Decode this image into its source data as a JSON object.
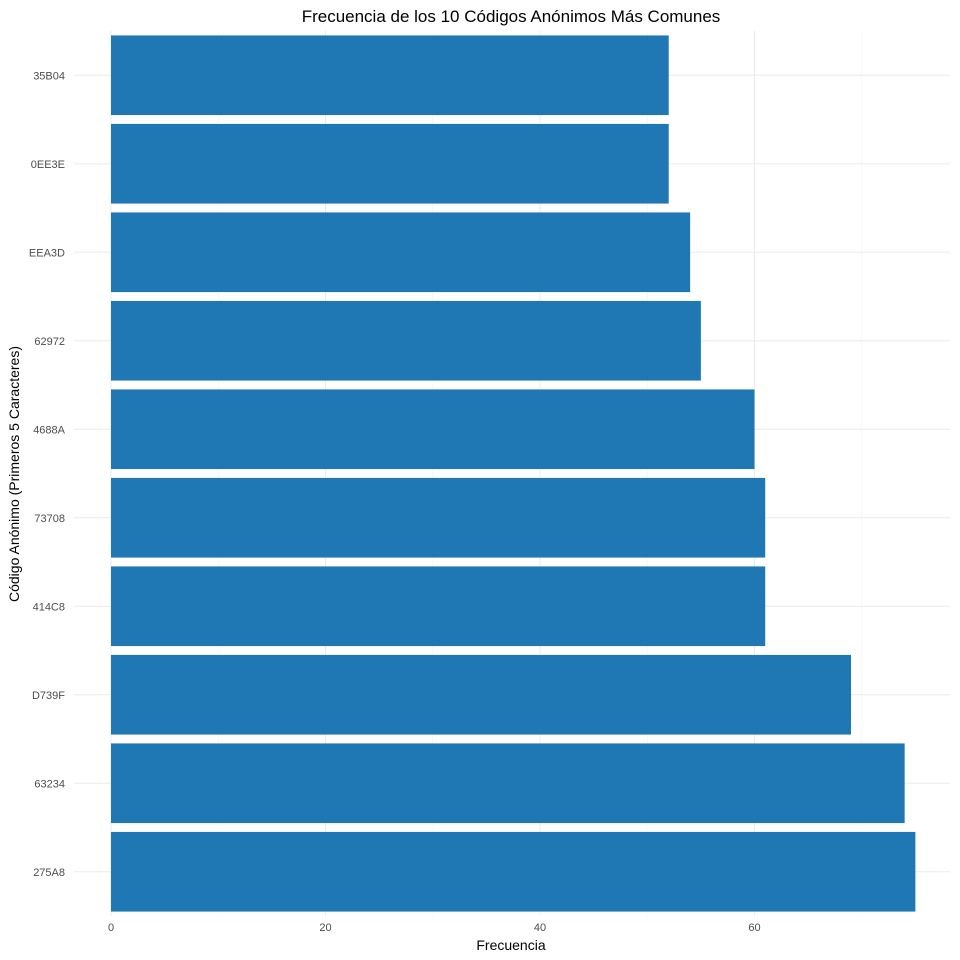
{
  "chart_data": {
    "type": "bar",
    "orientation": "horizontal",
    "title": "Frecuencia de los 10 Códigos Anónimos Más Comunes",
    "xlabel": "Frecuencia",
    "ylabel": "Código Anónimo (Primeros 5 Caracteres)",
    "categories": [
      "275A8",
      "63234",
      "D739F",
      "414C8",
      "73708",
      "4688A",
      "62972",
      "EEA3D",
      "0EE3E",
      "35B04"
    ],
    "values": [
      75,
      74,
      69,
      61,
      61,
      60,
      55,
      54,
      52,
      52
    ],
    "xlim": [
      0,
      76
    ],
    "x_ticks": [
      0,
      20,
      40,
      60
    ],
    "x_tick_labels": [
      "0",
      "20",
      "40",
      "60"
    ],
    "grid": true,
    "legend": "none",
    "bar_color": "#1f77b4"
  }
}
